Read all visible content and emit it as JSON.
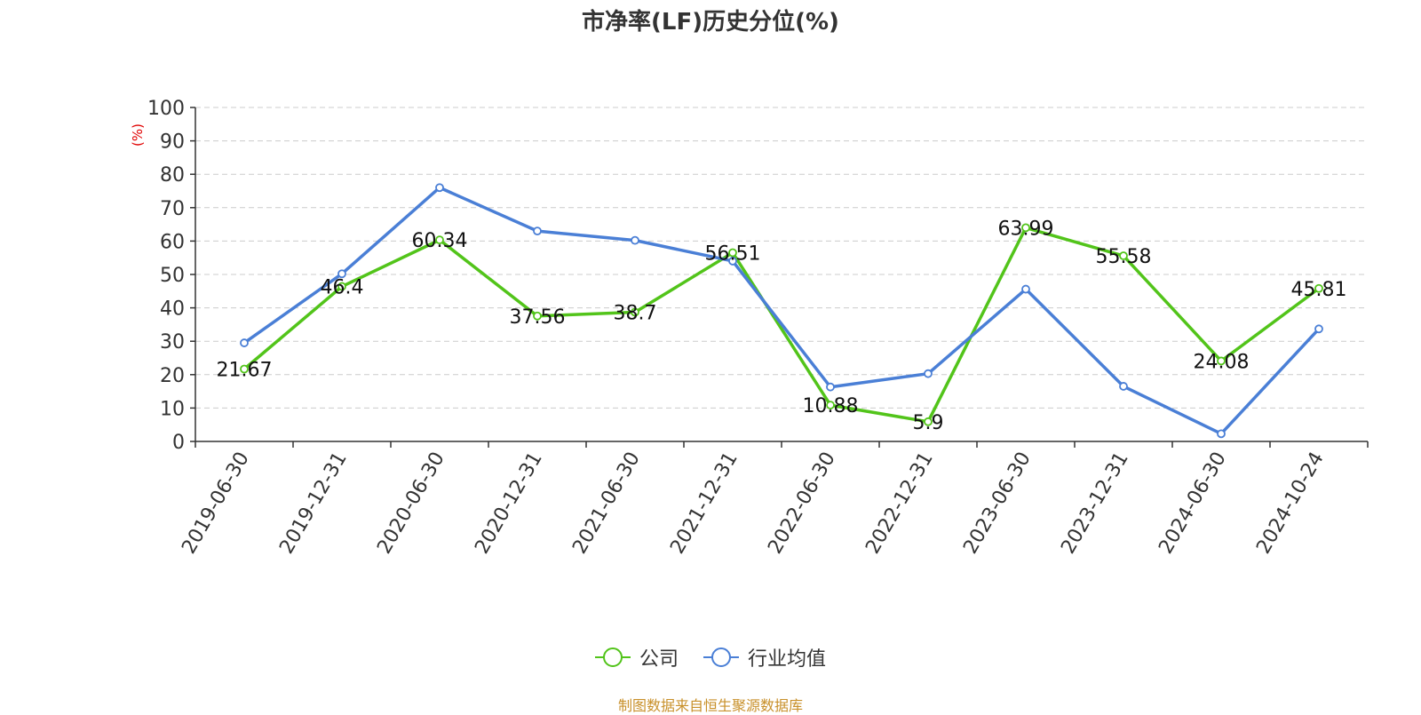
{
  "chart_data": {
    "type": "line",
    "title": "市净率(LF)历史分位(%)",
    "ylabel": "(%)",
    "ylim": [
      0,
      100
    ],
    "yticks": [
      0,
      10,
      20,
      30,
      40,
      50,
      60,
      70,
      80,
      90,
      100
    ],
    "grid": true,
    "legend_position": "bottom-center",
    "categories": [
      "2019-06-30",
      "2019-12-31",
      "2020-06-30",
      "2020-12-31",
      "2021-06-30",
      "2021-12-31",
      "2022-06-30",
      "2022-12-31",
      "2023-06-30",
      "2023-12-31",
      "2024-06-30",
      "2024-10-24"
    ],
    "series": [
      {
        "name": "公司",
        "color": "#52c41a",
        "show_labels": true,
        "values": [
          21.67,
          46.4,
          60.34,
          37.56,
          38.7,
          56.51,
          10.88,
          5.9,
          63.99,
          55.58,
          24.08,
          45.81
        ]
      },
      {
        "name": "行业均值",
        "color": "#4a7fd6",
        "show_labels": false,
        "values": [
          29.5,
          50.2,
          76,
          63,
          60.2,
          54,
          16.3,
          20.3,
          45.6,
          16.5,
          2.3,
          33.7
        ]
      }
    ]
  },
  "source": "制图数据来自恒生聚源数据库"
}
